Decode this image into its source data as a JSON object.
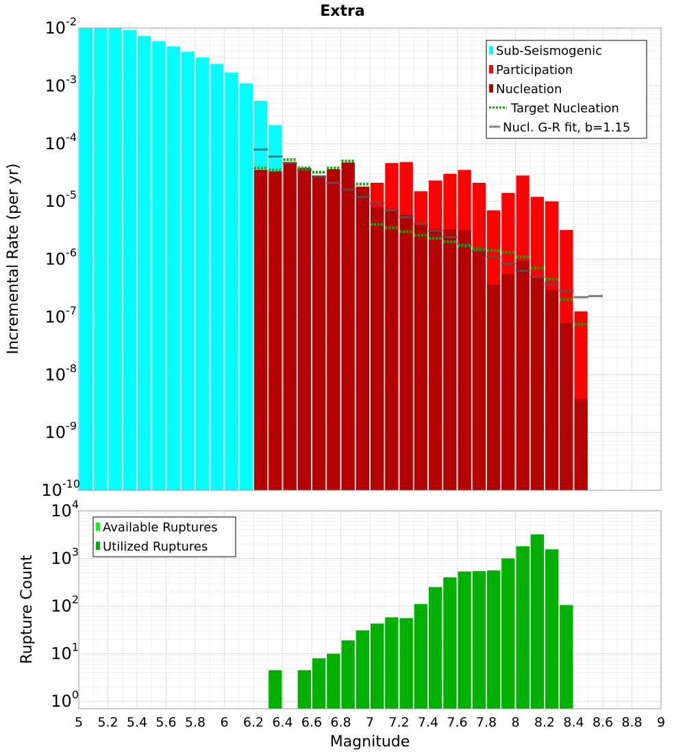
{
  "title": "Extra",
  "xlabel": "Magnitude",
  "colors": {
    "sub_seismogenic": "#00FFFF",
    "participation": "#FF0000",
    "nucleation": "#B30000",
    "target": "#00B300",
    "gr_fit": "#808080",
    "available": "#00FF00",
    "utilized": "#00B000"
  },
  "chart_data": [
    {
      "type": "bar",
      "title": "Extra",
      "xlabel": "Magnitude",
      "ylabel": "Incremental Rate (per yr)",
      "yscale": "log",
      "xlim": [
        5,
        9
      ],
      "ylim": [
        1e-10,
        0.01
      ],
      "grid": true,
      "legend_position": "top-right",
      "legend": [
        "Sub-Seismogenic",
        "Participation",
        "Nucleation",
        "Target Nucleation",
        "Nucl. G-R fit, b=1.15"
      ],
      "series": [
        {
          "name": "Sub-Seismogenic",
          "type": "bar",
          "x": [
            5.0,
            5.1,
            5.2,
            5.3,
            5.4,
            5.5,
            5.6,
            5.7,
            5.8,
            5.9,
            6.0,
            6.1,
            6.2,
            6.3
          ],
          "values": [
            0.01,
            0.01,
            0.01,
            0.0093,
            0.0073,
            0.0059,
            0.0048,
            0.0039,
            0.0031,
            0.0024,
            0.0017,
            0.0011,
            0.00055,
            0.00021
          ]
        },
        {
          "name": "Participation",
          "type": "bar",
          "x": [
            6.2,
            6.3,
            6.4,
            6.5,
            6.6,
            6.7,
            6.8,
            6.9,
            7.0,
            7.1,
            7.2,
            7.3,
            7.4,
            7.5,
            7.6,
            7.7,
            7.8,
            7.9,
            8.0,
            8.1,
            8.2,
            8.3,
            8.4
          ],
          "values": [
            3.5e-05,
            3.3e-05,
            4.8e-05,
            3.8e-05,
            2.8e-05,
            3.6e-05,
            4.7e-05,
            1.8e-05,
            2.1e-05,
            4.6e-05,
            4.8e-05,
            1.5e-05,
            2.3e-05,
            3e-05,
            3.5e-05,
            2.1e-05,
            7e-06,
            1.4e-05,
            2.8e-05,
            1.2e-05,
            1e-05,
            3.2e-06,
            1.25e-07
          ]
        },
        {
          "name": "Nucleation",
          "type": "bar",
          "x": [
            6.2,
            6.3,
            6.4,
            6.5,
            6.6,
            6.7,
            6.8,
            6.9,
            7.0,
            7.1,
            7.2,
            7.3,
            7.4,
            7.5,
            7.6,
            7.7,
            7.8,
            7.9,
            8.0,
            8.1,
            8.2,
            8.3,
            8.4
          ],
          "values": [
            3.5e-05,
            3.3e-05,
            4.8e-05,
            3.8e-05,
            2.8e-05,
            3.6e-05,
            4.7e-05,
            1.8e-05,
            8e-06,
            7e-06,
            5.8e-06,
            3.9e-06,
            3.3e-06,
            3.3e-06,
            3.2e-06,
            1.5e-06,
            3.6e-07,
            5.5e-07,
            9.5e-07,
            4.8e-07,
            3e-07,
            8e-08,
            3.8e-09
          ]
        },
        {
          "name": "Target Nucleation",
          "type": "dotted-segments",
          "x": [
            6.2,
            6.3,
            6.4,
            6.5,
            6.6,
            6.7,
            6.8,
            6.9,
            7.0,
            7.1,
            7.2,
            7.3,
            7.4,
            7.5,
            7.6,
            7.7,
            7.8,
            7.9,
            8.0,
            8.1,
            8.2,
            8.3,
            8.4
          ],
          "values": [
            3.8e-05,
            3.5e-05,
            5.3e-05,
            3.8e-05,
            3.2e-05,
            3.8e-05,
            5e-05,
            2e-05,
            4e-06,
            3.5e-06,
            3e-06,
            2.6e-06,
            2.3e-06,
            2e-06,
            1.7e-06,
            1.5e-06,
            1.4e-06,
            1.3e-06,
            1.1e-06,
            7e-07,
            4.5e-07,
            2e-07,
            7.5e-08
          ]
        },
        {
          "name": "Nucl. G-R fit, b=1.15",
          "type": "segments",
          "x": [
            6.2,
            6.3,
            6.4,
            6.5,
            6.6,
            6.7,
            6.8,
            6.9,
            7.0,
            7.1,
            7.2,
            7.3,
            7.4,
            7.5,
            7.6,
            7.7,
            7.8,
            7.9,
            8.0,
            8.1,
            8.2,
            8.3,
            8.4,
            8.5
          ],
          "values": [
            7.9e-05,
            6e-05,
            4.6e-05,
            3.5e-05,
            2.7e-05,
            2.1e-05,
            1.6e-05,
            1.2e-05,
            9.3e-06,
            7e-06,
            5.3e-06,
            4.1e-06,
            3.1e-06,
            2.4e-06,
            1.8e-06,
            1.4e-06,
            1.1e-06,
            8.3e-07,
            6.3e-07,
            4.9e-07,
            3.7e-07,
            2.8e-07,
            2.2e-07,
            2.3e-07
          ]
        }
      ]
    },
    {
      "type": "bar",
      "xlabel": "Magnitude",
      "ylabel": "Rupture Count",
      "yscale": "log",
      "xlim": [
        5,
        9
      ],
      "ylim": [
        0.7,
        10000
      ],
      "grid": true,
      "legend_position": "top-left",
      "legend": [
        "Available Ruptures",
        "Utilized Ruptures"
      ],
      "series": [
        {
          "name": "Available Ruptures",
          "type": "bar",
          "x": [
            6.3,
            6.5,
            6.6,
            6.7,
            6.8,
            6.9,
            7.0,
            7.1,
            7.2,
            7.3,
            7.4,
            7.5,
            7.6,
            7.7,
            7.8,
            7.9,
            8.0,
            8.1,
            8.2,
            8.3
          ],
          "values": [
            4.5,
            4.5,
            8,
            10,
            19,
            31,
            43,
            58,
            56,
            110,
            250,
            400,
            530,
            540,
            560,
            1000,
            1800,
            3200,
            1550,
            105
          ]
        },
        {
          "name": "Utilized Ruptures",
          "type": "bar",
          "x": [
            6.3,
            6.5,
            6.6,
            6.7,
            6.8,
            6.9,
            7.0,
            7.1,
            7.2,
            7.3,
            7.4,
            7.5,
            7.6,
            7.7,
            7.8,
            7.9,
            8.0,
            8.1,
            8.2,
            8.3
          ],
          "values": [
            4.5,
            4.5,
            8,
            10,
            19,
            31,
            43,
            58,
            56,
            110,
            250,
            400,
            530,
            540,
            560,
            1000,
            1800,
            3200,
            1550,
            105
          ]
        }
      ],
      "x_ticks": [
        "5",
        "5.2",
        "5.4",
        "5.6",
        "5.8",
        "6",
        "6.2",
        "6.4",
        "6.6",
        "6.8",
        "7",
        "7.2",
        "7.4",
        "7.6",
        "7.8",
        "8",
        "8.2",
        "8.4",
        "8.6",
        "8.8",
        "9"
      ]
    }
  ]
}
